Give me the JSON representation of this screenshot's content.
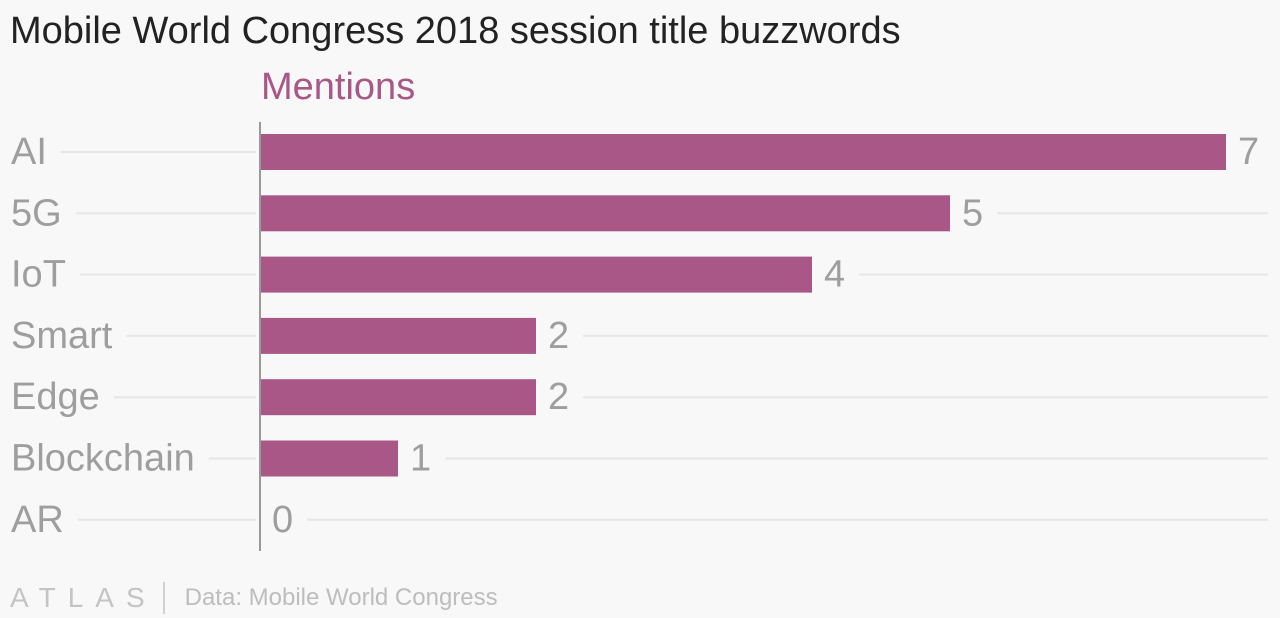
{
  "header": {
    "title": "Mobile World Congress 2018 session title buzzwords",
    "series_label": "Mentions"
  },
  "footer": {
    "logo": "ATLAS",
    "source": "Data: Mobile World Congress"
  },
  "colors": {
    "bar": "#a85787",
    "series_label": "#a85787",
    "category_text": "#9e9e9e",
    "value_text": "#9e9e9e",
    "gridline": "#e6e6e6",
    "axis": "#999999"
  },
  "chart_data": {
    "type": "bar",
    "orientation": "horizontal",
    "title": "Mobile World Congress 2018 session title buzzwords",
    "categories": [
      "AI",
      "5G",
      "IoT",
      "Smart",
      "Edge",
      "Blockchain",
      "AR"
    ],
    "series": [
      {
        "name": "Mentions",
        "values": [
          7,
          5,
          4,
          2,
          2,
          1,
          0
        ]
      }
    ],
    "xlim": [
      0,
      7
    ],
    "grid": true,
    "legend": "top-left"
  }
}
